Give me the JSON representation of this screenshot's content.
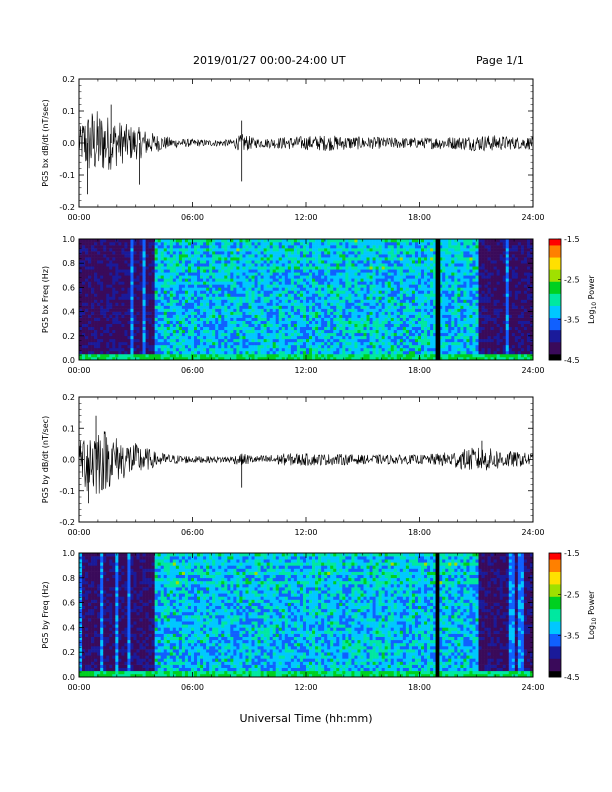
{
  "header": {
    "date_range": "2019/01/27  00:00-24:00 UT",
    "page": "Page 1/1"
  },
  "x_axis_label": "Universal Time (hh:mm)",
  "colorbar": {
    "label": "Log",
    "label_sub": "10",
    "label_suffix": " Power",
    "ticks": [
      "-1.5",
      "-2.5",
      "-3.5",
      "-4.5"
    ],
    "range": [
      -4.5,
      -1.5
    ],
    "colors": [
      "#000000",
      "#3a0a5a",
      "#1a1a9a",
      "#1060ff",
      "#00c8ff",
      "#00e8a0",
      "#00d020",
      "#a0e000",
      "#ffe000",
      "#ff8000",
      "#ff0000"
    ]
  },
  "chart_data": [
    {
      "type": "line",
      "ylabel": "PG5 bx dB/dt (nT/sec)",
      "x_ticks": [
        "00:00",
        "06:00",
        "12:00",
        "18:00",
        "24:00"
      ],
      "y_ticks": [
        "0.2",
        "0.1",
        "0.0",
        "-0.1",
        "-0.2"
      ],
      "xlim": [
        0,
        24
      ],
      "ylim": [
        -0.2,
        0.2
      ],
      "envelope": {
        "x": [
          0,
          0.3,
          0.7,
          1.2,
          1.8,
          2.5,
          3.2,
          4.0,
          5.0,
          6.0,
          7.0,
          8.0,
          8.7,
          9.3,
          10.0,
          11.0,
          12.0,
          13.0,
          14.0,
          15.0,
          16.0,
          17.0,
          18.0,
          19.0,
          20.0,
          21.0,
          22.0,
          23.0,
          24.0
        ],
        "amplitude": [
          0.04,
          0.09,
          0.11,
          0.1,
          0.08,
          0.06,
          0.05,
          0.03,
          0.015,
          0.012,
          0.01,
          0.012,
          0.03,
          0.015,
          0.015,
          0.02,
          0.022,
          0.025,
          0.022,
          0.02,
          0.018,
          0.018,
          0.016,
          0.02,
          0.02,
          0.025,
          0.025,
          0.02,
          0.02
        ]
      },
      "spikes": [
        {
          "x": 8.6,
          "y": -0.12
        },
        {
          "x": 8.6,
          "y": 0.07
        },
        {
          "x": 0.45,
          "y": -0.16
        },
        {
          "x": 1.7,
          "y": 0.12
        },
        {
          "x": 3.2,
          "y": -0.13
        }
      ]
    },
    {
      "type": "heatmap",
      "ylabel": "PG5 bx Freq (Hz)",
      "x_ticks": [
        "00:00",
        "06:00",
        "12:00",
        "18:00",
        "24:00"
      ],
      "y_ticks": [
        "1.0",
        "0.8",
        "0.6",
        "0.4",
        "0.2",
        "0.0"
      ],
      "xlim": [
        0,
        24
      ],
      "ylim": [
        0,
        1.0
      ],
      "quiet_intervals": [
        [
          0,
          4.0
        ],
        [
          21.2,
          24
        ]
      ],
      "data_gaps": [
        18.85,
        19.1
      ],
      "active_patch": {
        "x": [
          13.8,
          16.2
        ],
        "y": [
          0.22,
          0.35
        ]
      }
    },
    {
      "type": "line",
      "ylabel": "PG5 by dB/dt (nT/sec)",
      "x_ticks": [
        "00:00",
        "06:00",
        "12:00",
        "18:00",
        "24:00"
      ],
      "y_ticks": [
        "0.2",
        "0.1",
        "0.0",
        "-0.1",
        "-0.2"
      ],
      "xlim": [
        0,
        24
      ],
      "ylim": [
        -0.2,
        0.2
      ],
      "envelope": {
        "x": [
          0,
          0.3,
          0.7,
          1.2,
          1.8,
          2.5,
          3.2,
          4.0,
          5.0,
          6.0,
          7.0,
          8.0,
          8.7,
          9.3,
          10.0,
          11.0,
          12.0,
          13.0,
          14.0,
          15.0,
          16.0,
          17.0,
          18.0,
          19.0,
          20.0,
          21.0,
          22.0,
          23.0,
          24.0
        ],
        "amplitude": [
          0.05,
          0.1,
          0.13,
          0.11,
          0.08,
          0.06,
          0.05,
          0.025,
          0.015,
          0.012,
          0.01,
          0.012,
          0.02,
          0.012,
          0.015,
          0.02,
          0.02,
          0.018,
          0.018,
          0.015,
          0.015,
          0.015,
          0.015,
          0.02,
          0.03,
          0.04,
          0.035,
          0.025,
          0.02
        ]
      },
      "spikes": [
        {
          "x": 0.5,
          "y": -0.14
        },
        {
          "x": 0.9,
          "y": 0.14
        },
        {
          "x": 8.6,
          "y": -0.09
        },
        {
          "x": 21.3,
          "y": 0.06
        }
      ]
    },
    {
      "type": "heatmap",
      "ylabel": "PG5 by Freq (Hz)",
      "x_ticks": [
        "00:00",
        "06:00",
        "12:00",
        "18:00",
        "24:00"
      ],
      "y_ticks": [
        "1.0",
        "0.8",
        "0.6",
        "0.4",
        "0.2",
        "0.0"
      ],
      "xlim": [
        0,
        24
      ],
      "ylim": [
        0,
        1.0
      ],
      "quiet_intervals": [
        [
          0,
          4.0
        ],
        [
          21.2,
          24
        ]
      ],
      "data_gaps": [
        18.85,
        19.05
      ],
      "active_patch": {
        "x": [
          13.8,
          16.5
        ],
        "y": [
          0.15,
          0.3
        ]
      }
    }
  ]
}
